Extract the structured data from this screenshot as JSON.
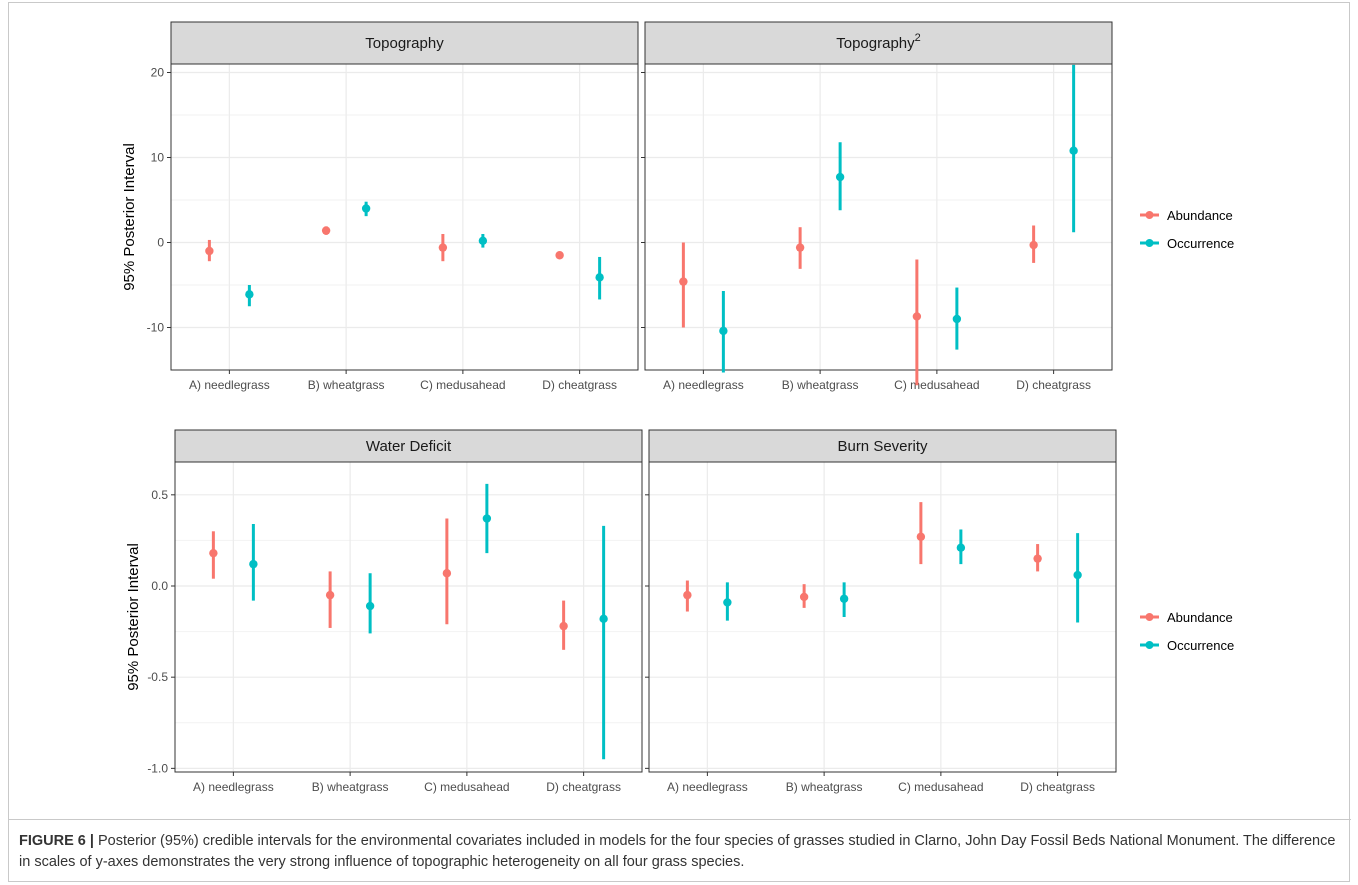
{
  "chart_data": [
    {
      "type": "scatter",
      "facet": "Topography",
      "ylabel": "95% Posterior Interval",
      "ylim": [
        -15,
        21
      ],
      "yticks": [
        20,
        10,
        0,
        -10
      ],
      "yticklabels": [
        "20",
        "10",
        "0",
        "-10"
      ],
      "categories": [
        "A) needlegrass",
        "B) wheatgrass",
        "C) medusahead",
        "D) cheatgrass"
      ],
      "series": [
        {
          "name": "Abundance",
          "color": "#F8766D",
          "points": [
            {
              "mean": -1.0,
              "low": -2.2,
              "high": 0.3
            },
            {
              "mean": 1.4,
              "low": 0.9,
              "high": 1.9
            },
            {
              "mean": -0.6,
              "low": -2.2,
              "high": 1.0
            },
            {
              "mean": -1.5,
              "low": -1.7,
              "high": -1.3
            }
          ]
        },
        {
          "name": "Occurrence",
          "color": "#00BFC4",
          "points": [
            {
              "mean": -6.1,
              "low": -7.5,
              "high": -5.0
            },
            {
              "mean": 4.0,
              "low": 3.1,
              "high": 4.8
            },
            {
              "mean": 0.2,
              "low": -0.6,
              "high": 1.0
            },
            {
              "mean": -4.1,
              "low": -6.7,
              "high": -1.7
            }
          ]
        }
      ]
    },
    {
      "type": "scatter",
      "facet": "Topography",
      "facet_sup": "2",
      "ylim": [
        -15,
        21
      ],
      "categories": [
        "A) needlegrass",
        "B) wheatgrass",
        "C) medusahead",
        "D) cheatgrass"
      ],
      "series": [
        {
          "name": "Abundance",
          "color": "#F8766D",
          "points": [
            {
              "mean": -4.6,
              "low": -10.0,
              "high": 0.0
            },
            {
              "mean": -0.6,
              "low": -3.1,
              "high": 1.8
            },
            {
              "mean": -8.7,
              "low": -16.8,
              "high": -2.0
            },
            {
              "mean": -0.3,
              "low": -2.4,
              "high": 2.0
            }
          ]
        },
        {
          "name": "Occurrence",
          "color": "#00BFC4",
          "points": [
            {
              "mean": -10.4,
              "low": -15.3,
              "high": -5.7
            },
            {
              "mean": 7.7,
              "low": 3.8,
              "high": 11.8
            },
            {
              "mean": -9.0,
              "low": -12.6,
              "high": -5.3
            },
            {
              "mean": 10.8,
              "low": 1.2,
              "high": 20.9
            }
          ]
        }
      ]
    },
    {
      "type": "scatter",
      "facet": "Water Deficit",
      "ylabel": "95% Posterior Interval",
      "ylim": [
        -1.02,
        0.68
      ],
      "yticks": [
        0.5,
        0.0,
        -0.5,
        -1.0
      ],
      "yticklabels": [
        "0.5",
        "0.0",
        "-0.5",
        "-1.0"
      ],
      "categories": [
        "A) needlegrass",
        "B) wheatgrass",
        "C) medusahead",
        "D) cheatgrass"
      ],
      "series": [
        {
          "name": "Abundance",
          "color": "#F8766D",
          "points": [
            {
              "mean": 0.18,
              "low": 0.04,
              "high": 0.3
            },
            {
              "mean": -0.05,
              "low": -0.23,
              "high": 0.08
            },
            {
              "mean": 0.07,
              "low": -0.21,
              "high": 0.37
            },
            {
              "mean": -0.22,
              "low": -0.35,
              "high": -0.08
            }
          ]
        },
        {
          "name": "Occurrence",
          "color": "#00BFC4",
          "points": [
            {
              "mean": 0.12,
              "low": -0.08,
              "high": 0.34
            },
            {
              "mean": -0.11,
              "low": -0.26,
              "high": 0.07
            },
            {
              "mean": 0.37,
              "low": 0.18,
              "high": 0.56
            },
            {
              "mean": -0.18,
              "low": -0.95,
              "high": 0.33
            }
          ]
        }
      ]
    },
    {
      "type": "scatter",
      "facet": "Burn Severity",
      "ylim": [
        -1.02,
        0.68
      ],
      "categories": [
        "A) needlegrass",
        "B) wheatgrass",
        "C) medusahead",
        "D) cheatgrass"
      ],
      "series": [
        {
          "name": "Abundance",
          "color": "#F8766D",
          "points": [
            {
              "mean": -0.05,
              "low": -0.14,
              "high": 0.03
            },
            {
              "mean": -0.06,
              "low": -0.12,
              "high": 0.01
            },
            {
              "mean": 0.27,
              "low": 0.12,
              "high": 0.46
            },
            {
              "mean": 0.15,
              "low": 0.08,
              "high": 0.23
            }
          ]
        },
        {
          "name": "Occurrence",
          "color": "#00BFC4",
          "points": [
            {
              "mean": -0.09,
              "low": -0.19,
              "high": 0.02
            },
            {
              "mean": -0.07,
              "low": -0.17,
              "high": 0.02
            },
            {
              "mean": 0.21,
              "low": 0.12,
              "high": 0.31
            },
            {
              "mean": 0.06,
              "low": -0.2,
              "high": 0.29
            }
          ]
        }
      ]
    }
  ],
  "legends": [
    {
      "items": [
        {
          "label": "Abundance",
          "color": "#F8766D"
        },
        {
          "label": "Occurrence",
          "color": "#00BFC4"
        }
      ]
    },
    {
      "items": [
        {
          "label": "Abundance",
          "color": "#F8766D"
        },
        {
          "label": "Occurrence",
          "color": "#00BFC4"
        }
      ]
    }
  ],
  "caption": {
    "label": "FIGURE 6 |",
    "text": " Posterior (95%) credible intervals for the environmental covariates included in models for the four species of grasses studied in Clarno, John Day Fossil Beds National Monument. The difference in scales of y-axes demonstrates the very strong influence of topographic heterogeneity on all four grass species."
  }
}
